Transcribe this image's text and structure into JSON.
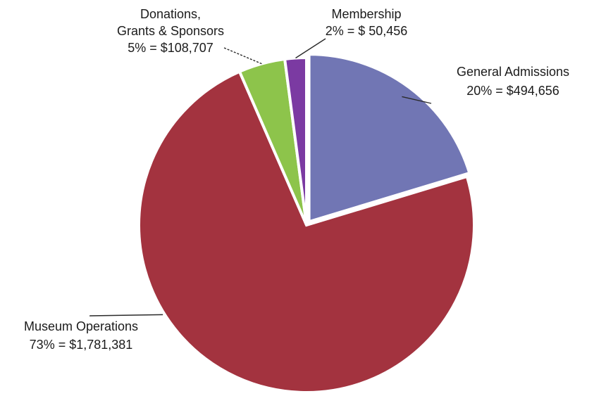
{
  "chart_data": {
    "type": "pie",
    "slices": [
      {
        "key": "general_admissions",
        "label_lines": [
          "General Admissions",
          "20% = $494,656"
        ],
        "percent": 20,
        "value": 494656,
        "color": "#7176b4"
      },
      {
        "key": "museum_operations",
        "label_lines": [
          "Museum Operations",
          "73% = $1,781,381"
        ],
        "percent": 73,
        "value": 1781381,
        "color": "#a3333f"
      },
      {
        "key": "donations_grants_sponsors",
        "label_lines": [
          "Donations,",
          "Grants & Sponsors",
          "5% = $108,707"
        ],
        "percent": 5,
        "value": 108707,
        "color": "#8dc44b"
      },
      {
        "key": "membership",
        "label_lines": [
          "Membership",
          "2% = $ 50,456"
        ],
        "percent": 2,
        "value": 50456,
        "color": "#7b3aa2"
      }
    ]
  }
}
